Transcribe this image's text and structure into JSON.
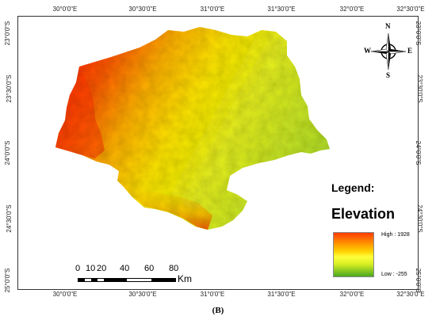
{
  "top_ticks": [
    "30°0'0\"E",
    "30°30'0\"E",
    "31°0'0\"E",
    "31°30'0\"E",
    "32°0'0\"E",
    "32°30'0\"E"
  ],
  "bottom_ticks": [
    "30°0'0\"E",
    "30°30'0\"E",
    "31°0'0\"E",
    "31°30'0\"E",
    "32°0'0\"E",
    "32°30'0\"E"
  ],
  "left_ticks": [
    "23°0'0\"S",
    "23°30'0\"S",
    "24°0'0\"S",
    "24°30'0\"S",
    "25°0'0\"S"
  ],
  "right_ticks": [
    "23°0'0\"S",
    "23°30'0\"S",
    "24°0'0\"S",
    "24°30'0\"S",
    "25°0'0\"S"
  ],
  "legend": {
    "title": "Legend:",
    "subtitle": "Elevation",
    "high_label": "High : 1928",
    "low_label": "Low : -255",
    "colors": [
      "#ff3b00",
      "#ff8c00",
      "#ffd000",
      "#ffff3a",
      "#d6ee22",
      "#4aa820"
    ]
  },
  "scale_bar": {
    "numbers": [
      "0",
      "10",
      "20",
      "40",
      "60",
      "80"
    ],
    "unit": "Km"
  },
  "compass": {
    "n": "N",
    "s": "S",
    "e": "E",
    "w": "W"
  },
  "caption": "(B)",
  "icons": {
    "north_arrow": "compass-rose-icon"
  }
}
